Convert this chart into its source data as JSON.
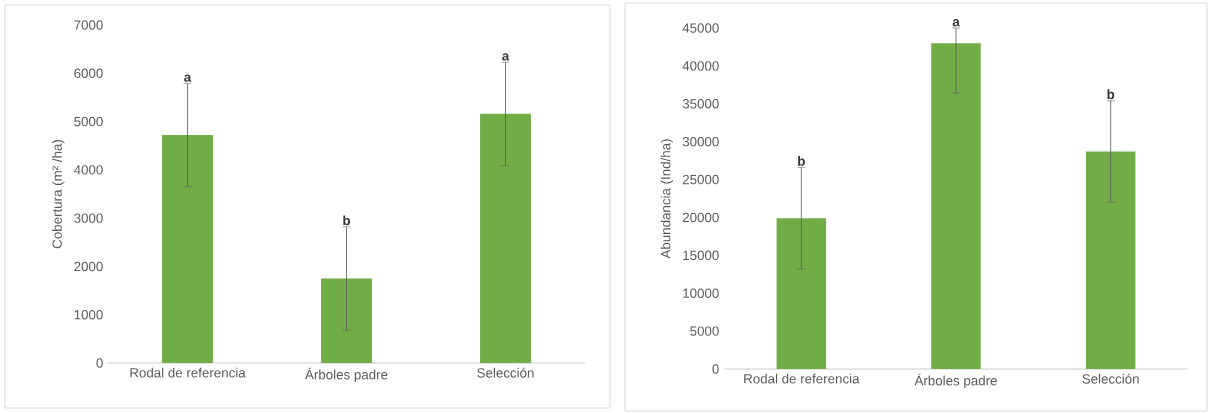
{
  "chart_data": [
    {
      "type": "bar",
      "ylabel": "Cobertura (m² /ha)",
      "categories": [
        "Rodal de referencia",
        "Árboles padre",
        "Selección"
      ],
      "values": [
        4720,
        1750,
        5160
      ],
      "errors": [
        1070,
        1070,
        1070
      ],
      "color": "#70ad47",
      "ylim": [
        0,
        7000
      ],
      "yticks": [
        0,
        1000,
        2000,
        3000,
        4000,
        5000,
        6000,
        7000
      ],
      "annotations": [
        {
          "text": "a",
          "x": "Rodal de referencia",
          "y": 5790
        },
        {
          "text": "b",
          "x": "Árboles padre",
          "y": 2820
        },
        {
          "text": "a",
          "x": "Selección",
          "y": 6230
        }
      ]
    },
    {
      "type": "bar",
      "ylabel": "Abundancia (Ind/ha)",
      "categories": [
        "Rodal de referencia",
        "Árboles padre",
        "Selección"
      ],
      "values": [
        19900,
        43000,
        28700
      ],
      "errors": [
        6700,
        [
          36400,
          45000
        ],
        6700
      ],
      "color": "#70ad47",
      "ylim": [
        0,
        45000
      ],
      "yticks": [
        0,
        5000,
        10000,
        15000,
        20000,
        25000,
        30000,
        35000,
        40000,
        45000
      ],
      "annotations": [
        {
          "text": "b",
          "x": "Rodal de referencia",
          "y": 26600
        },
        {
          "text": "a",
          "x": "Árboles padre",
          "y": 45000
        },
        {
          "text": "b",
          "x": "Selección",
          "y": 35400
        }
      ]
    }
  ]
}
